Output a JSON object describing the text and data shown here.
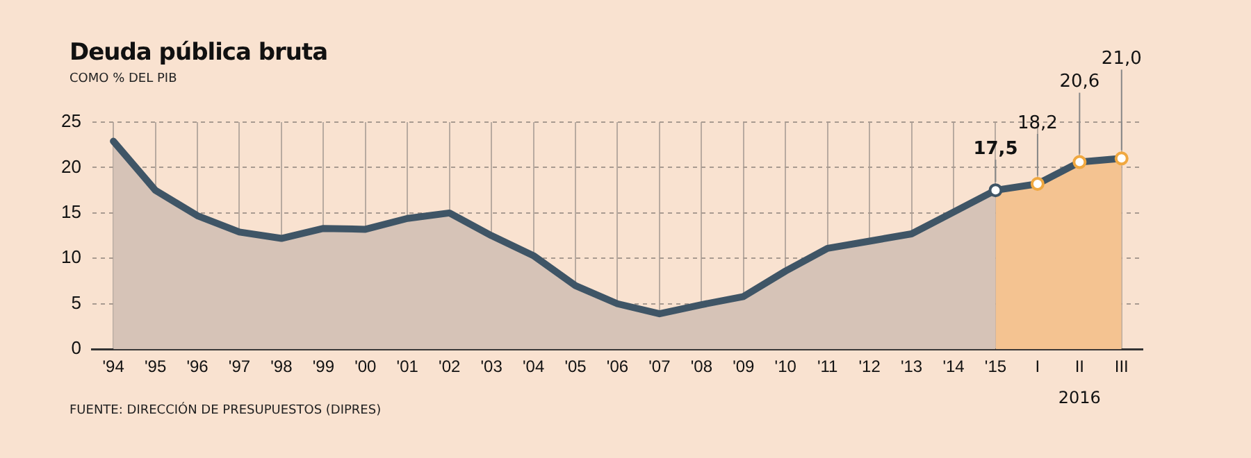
{
  "chart_data": {
    "type": "area",
    "title": "Deuda pública bruta",
    "subtitle": "COMO % DEL PIB",
    "categories": [
      "'94",
      "'95",
      "'96",
      "'97",
      "'98",
      "'99",
      "'00",
      "'01",
      "'02",
      "'03",
      "'04",
      "'05",
      "'06",
      "'07",
      "'08",
      "'09",
      "'10",
      "'11",
      "'12",
      "'13",
      "'14",
      "'15",
      "I",
      "II",
      "III"
    ],
    "series": [
      {
        "color": "#d6c3b7",
        "values": [
          22.9,
          17.5,
          14.7,
          12.9,
          12.2,
          13.3,
          13.2,
          14.4,
          15.0,
          12.5,
          10.3,
          7.0,
          5.0,
          3.9,
          4.9,
          5.8,
          8.6,
          11.1,
          11.9,
          12.7,
          15.1,
          17.5,
          null,
          null,
          null
        ]
      },
      {
        "color": "#f4c391",
        "values": [
          null,
          null,
          null,
          null,
          null,
          null,
          null,
          null,
          null,
          null,
          null,
          null,
          null,
          null,
          null,
          null,
          null,
          null,
          null,
          null,
          null,
          17.5,
          18.2,
          20.6,
          21.0
        ]
      },
      {
        "type": "line",
        "color": "#3f5566",
        "values": [
          22.9,
          17.5,
          14.7,
          12.9,
          12.2,
          13.3,
          13.2,
          14.4,
          15.0,
          12.5,
          10.3,
          7.0,
          5.0,
          3.9,
          4.9,
          5.8,
          8.6,
          11.1,
          11.9,
          12.7,
          15.1,
          17.5,
          18.2,
          20.6,
          21.0
        ]
      },
      {
        "type": "scatter",
        "x": [
          "'15",
          "I",
          "II",
          "III"
        ],
        "values": [
          17.5,
          18.2,
          20.6,
          21.0
        ],
        "colors": [
          "#3f5566",
          "#f0a840",
          "#f0a840",
          "#f0a840"
        ],
        "value_labels": [
          "17,5",
          "18,2",
          "20,6",
          "21,0"
        ]
      }
    ],
    "ylim": [
      0,
      25
    ],
    "yticks": [
      0,
      5,
      10,
      15,
      20,
      25
    ],
    "grid": true,
    "annotations": [
      "2016",
      "FUENTE: DIRECCIÓN DE PRESUPUESTOS (DIPRES)"
    ]
  }
}
